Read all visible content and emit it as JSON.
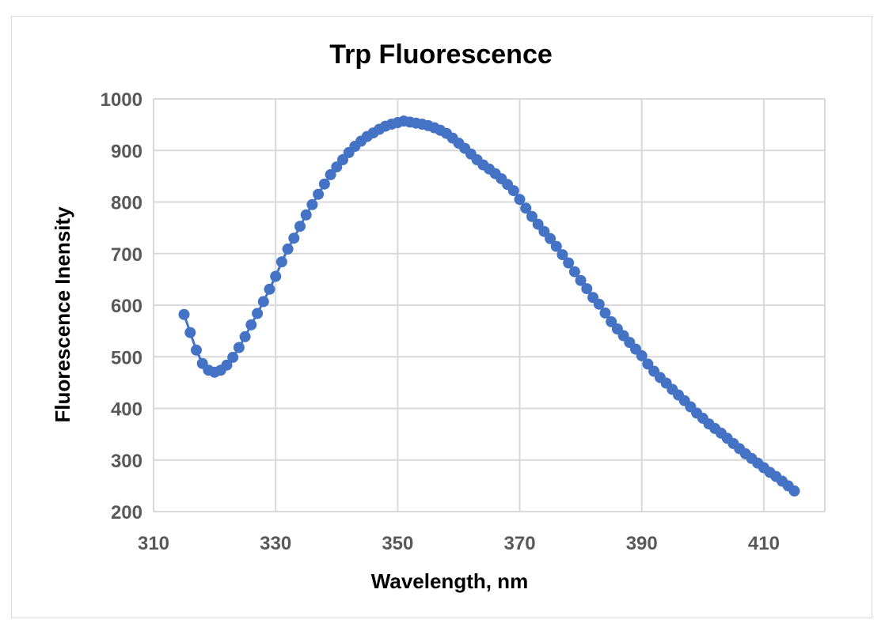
{
  "chart_data": {
    "type": "scatter",
    "title": "Trp Fluorescence",
    "xlabel": "Wavelength, nm",
    "ylabel": "Fluorescence Inensity",
    "xlim": [
      310,
      420
    ],
    "ylim": [
      200,
      1000
    ],
    "xticks": [
      310,
      330,
      350,
      370,
      390,
      410
    ],
    "yticks": [
      200,
      300,
      400,
      500,
      600,
      700,
      800,
      900,
      1000
    ],
    "grid": true,
    "legend": "none",
    "colors": {
      "series": "#4472C4",
      "grid": "#d9d9d9",
      "tick_text": "#595959"
    },
    "series": [
      {
        "x": [
          315,
          316,
          317,
          318,
          319,
          320,
          321,
          322,
          323,
          324,
          325,
          326,
          327,
          328,
          329,
          330,
          331,
          332,
          333,
          334,
          335,
          336,
          337,
          338,
          339,
          340,
          341,
          342,
          343,
          344,
          345,
          346,
          347,
          348,
          349,
          350,
          351,
          352,
          353,
          354,
          355,
          356,
          357,
          358,
          359,
          360,
          361,
          362,
          363,
          364,
          365,
          366,
          367,
          368,
          369,
          370,
          371,
          372,
          373,
          374,
          375,
          376,
          377,
          378,
          379,
          380,
          381,
          382,
          383,
          384,
          385,
          386,
          387,
          388,
          389,
          390,
          391,
          392,
          393,
          394,
          395,
          396,
          397,
          398,
          399,
          400,
          401,
          402,
          403,
          404,
          405,
          406,
          407,
          408,
          409,
          410,
          411,
          412,
          413,
          414,
          415
        ],
        "values": [
          582,
          547,
          513,
          487,
          474,
          470,
          474,
          484,
          499,
          518,
          539,
          562,
          584,
          607,
          631,
          656,
          684,
          709,
          730,
          753,
          775,
          795,
          815,
          835,
          853,
          868,
          882,
          896,
          908,
          918,
          927,
          934,
          941,
          947,
          951,
          954,
          957,
          955,
          953,
          951,
          948,
          944,
          939,
          933,
          924,
          914,
          904,
          893,
          882,
          872,
          864,
          855,
          845,
          834,
          822,
          805,
          788,
          772,
          757,
          743,
          729,
          714,
          698,
          682,
          665,
          648,
          632,
          615,
          602,
          585,
          568,
          554,
          541,
          528,
          515,
          502,
          486,
          472,
          460,
          449,
          437,
          426,
          415,
          403,
          391,
          381,
          370,
          361,
          352,
          342,
          332,
          322,
          312,
          303,
          294,
          285,
          276,
          268,
          259,
          250,
          240
        ]
      }
    ]
  }
}
